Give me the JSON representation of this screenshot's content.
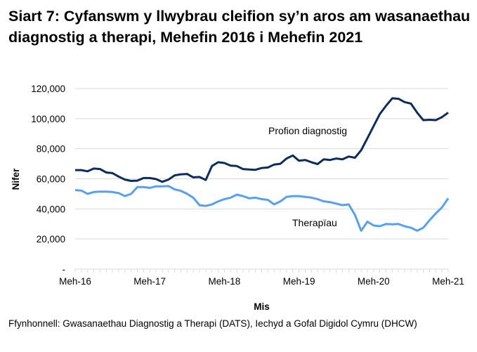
{
  "chart_data": {
    "type": "line",
    "title": "Siart 7: Cyfanswm y llwybrau cleifion sy’n aros am wasanaethau diagnostig a therapi, Mehefin 2016 i Mehefin 2021",
    "xlabel": "Mis",
    "ylabel": "Nifer",
    "ylim": [
      0,
      120000
    ],
    "yticks": [
      0,
      20000,
      40000,
      60000,
      80000,
      100000,
      120000
    ],
    "ytick_labels": [
      "-",
      "20,000",
      "40,000",
      "60,000",
      "80,000",
      "100,000",
      "120,000"
    ],
    "xtick_labels": [
      {
        "index": 0,
        "label": "Meh-16"
      },
      {
        "index": 12,
        "label": "Meh-17"
      },
      {
        "index": 24,
        "label": "Meh-18"
      },
      {
        "index": 36,
        "label": "Meh-19"
      },
      {
        "index": 48,
        "label": "Meh-20"
      },
      {
        "index": 60,
        "label": "Meh-21"
      }
    ],
    "grid": true,
    "series": [
      {
        "name": "Profion diagnostig",
        "color": "#0b2d5e",
        "values": [
          65800,
          65800,
          65000,
          66800,
          66500,
          64200,
          63800,
          61500,
          59500,
          58600,
          58800,
          60500,
          60500,
          59800,
          58000,
          59500,
          62300,
          63000,
          63200,
          61000,
          61200,
          59200,
          68500,
          71000,
          70500,
          68800,
          68500,
          66500,
          66200,
          66000,
          67200,
          67500,
          69500,
          70000,
          73500,
          75500,
          72000,
          72500,
          71000,
          69800,
          73000,
          72500,
          73500,
          73000,
          74800,
          74000,
          79000,
          87000,
          95000,
          103000,
          108500,
          113500,
          113200,
          111000,
          110000,
          104000,
          99000,
          99200,
          99000,
          101000,
          104000
        ]
      },
      {
        "name": "Therapïau",
        "color": "#56a0f2",
        "values": [
          52500,
          52200,
          50000,
          51200,
          51500,
          51500,
          51200,
          50500,
          48500,
          50000,
          54500,
          54500,
          54000,
          55000,
          55000,
          55200,
          53000,
          52000,
          50000,
          47500,
          42500,
          42000,
          43000,
          45000,
          46500,
          47500,
          49500,
          48500,
          47000,
          47500,
          46500,
          46000,
          43000,
          45000,
          48000,
          48500,
          48500,
          48000,
          47500,
          46500,
          45000,
          44500,
          43500,
          42500,
          43000,
          36000,
          25500,
          31500,
          29000,
          28500,
          30000,
          29800,
          30000,
          28500,
          27500,
          25500,
          27500,
          32500,
          37000,
          41000,
          47000
        ]
      }
    ]
  },
  "source": "Ffynhonnell: Gwasanaethau Diagnostig a Therapi (DATS), Iechyd a Gofal Digidol Cymru (DHCW)"
}
